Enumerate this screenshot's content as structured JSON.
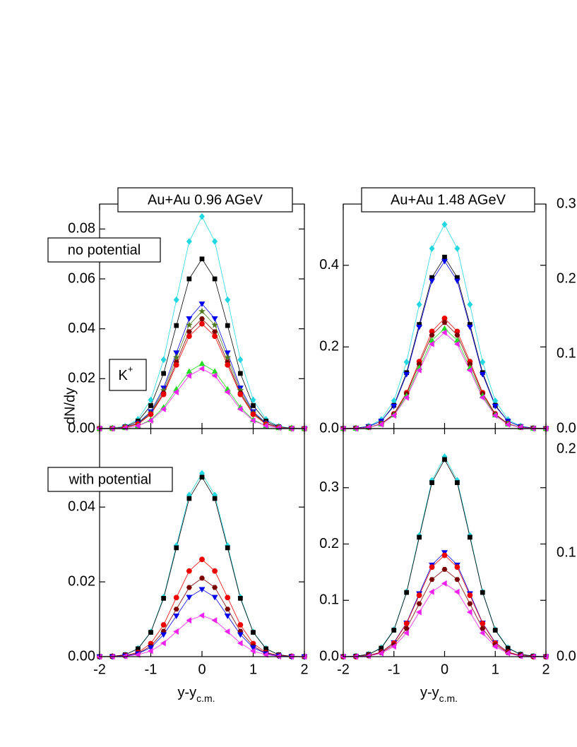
{
  "chart_data": [
    {
      "type": "line",
      "title": "Au+Au 0.96 AGeV",
      "annotations": [
        "no potential",
        {
          "text": "K",
          "sup": "+"
        }
      ],
      "ylabel": "dN/dy",
      "x": [
        -2,
        -1.75,
        -1.5,
        -1.25,
        -1,
        -0.75,
        -0.5,
        -0.25,
        0,
        0.25,
        0.5,
        0.75,
        1,
        1.25,
        1.5,
        1.75,
        2
      ],
      "xlim": [
        -2,
        2
      ],
      "xticks": [
        -2,
        -1,
        0,
        1,
        2
      ],
      "xticklabels": false,
      "ylim": [
        0,
        0.09
      ],
      "yticks": [
        {
          "value": 0,
          "label": "0.00"
        },
        0.02,
        0.04,
        0.06,
        0.08
      ],
      "series": [
        {
          "color": "#22d8e0",
          "marker": "diamond",
          "values": [
            0,
            0.0002,
            0.0009,
            0.0037,
            0.0115,
            0.0276,
            0.0516,
            0.075,
            0.085,
            0.075,
            0.0516,
            0.0276,
            0.0115,
            0.0037,
            0.0009,
            0.0002,
            0
          ]
        },
        {
          "color": "#000000",
          "marker": "square",
          "values": [
            0,
            0.0001,
            0.0007,
            0.003,
            0.0092,
            0.0221,
            0.0413,
            0.06,
            0.068,
            0.06,
            0.0413,
            0.0221,
            0.0092,
            0.003,
            0.0007,
            0.0001,
            0
          ]
        },
        {
          "color": "#0000ee",
          "marker": "triangle-down",
          "values": [
            0,
            0.0001,
            0.0006,
            0.0022,
            0.0068,
            0.0163,
            0.0304,
            0.0441,
            0.05,
            0.0441,
            0.0304,
            0.0163,
            0.0068,
            0.0022,
            0.0006,
            0.0001,
            0
          ]
        },
        {
          "color": "#4f7a1c",
          "marker": "star",
          "values": [
            0,
            0.0001,
            0.0005,
            0.0021,
            0.0063,
            0.0153,
            0.0285,
            0.0415,
            0.047,
            0.0415,
            0.0285,
            0.0153,
            0.0063,
            0.0021,
            0.0005,
            0.0001,
            0
          ]
        },
        {
          "color": "#7a0000",
          "marker": "hexagon",
          "values": [
            0,
            0.0001,
            0.0005,
            0.0019,
            0.0059,
            0.0143,
            0.0267,
            0.0388,
            0.044,
            0.0388,
            0.0267,
            0.0143,
            0.0059,
            0.0019,
            0.0005,
            0.0001,
            0
          ]
        },
        {
          "color": "#ee0000",
          "marker": "circle",
          "values": [
            0,
            0.0001,
            0.0005,
            0.0018,
            0.0057,
            0.0137,
            0.0255,
            0.037,
            0.042,
            0.037,
            0.0255,
            0.0137,
            0.0057,
            0.0018,
            0.0005,
            0.0001,
            0
          ]
        },
        {
          "color": "#22dd22",
          "marker": "triangle-up",
          "values": [
            0,
            0.0001,
            0.0003,
            0.0011,
            0.0035,
            0.0085,
            0.0158,
            0.0229,
            0.026,
            0.0229,
            0.0158,
            0.0085,
            0.0035,
            0.0011,
            0.0003,
            0.0001,
            0
          ]
        },
        {
          "color": "#ee22ee",
          "marker": "triangle-left",
          "values": [
            0,
            0,
            0.0003,
            0.0011,
            0.0032,
            0.0078,
            0.0146,
            0.0212,
            0.024,
            0.0212,
            0.0146,
            0.0078,
            0.0032,
            0.0011,
            0.0003,
            0,
            0
          ]
        }
      ]
    },
    {
      "type": "line",
      "title": "Au+Au 1.48 AGeV",
      "x": [
        -2,
        -1.75,
        -1.5,
        -1.25,
        -1,
        -0.75,
        -0.5,
        -0.25,
        0,
        0.25,
        0.5,
        0.75,
        1,
        1.25,
        1.5,
        1.75,
        2
      ],
      "xlim": [
        -2,
        2
      ],
      "xticks": [
        -2,
        -1,
        0,
        1,
        2
      ],
      "xticklabels": false,
      "ylim": [
        0,
        0.55
      ],
      "yticks": [
        {
          "value": 0,
          "label": "0.0"
        },
        0.2,
        0.4
      ],
      "series": [
        {
          "color": "#22d8e0",
          "marker": "diamond",
          "values": [
            0,
            0.001,
            0.006,
            0.022,
            0.068,
            0.163,
            0.304,
            0.441,
            0.5,
            0.441,
            0.304,
            0.163,
            0.068,
            0.022,
            0.006,
            0.001,
            0
          ]
        },
        {
          "color": "#000000",
          "marker": "square",
          "values": [
            0,
            0.001,
            0.005,
            0.018,
            0.057,
            0.137,
            0.255,
            0.37,
            0.42,
            0.37,
            0.255,
            0.137,
            0.057,
            0.018,
            0.005,
            0.001,
            0
          ]
        },
        {
          "color": "#0000ee",
          "marker": "triangle-down",
          "values": [
            0,
            0.001,
            0.005,
            0.018,
            0.055,
            0.133,
            0.249,
            0.362,
            0.41,
            0.362,
            0.249,
            0.133,
            0.055,
            0.018,
            0.005,
            0.001,
            0
          ]
        },
        {
          "color": "#ee0000",
          "marker": "circle",
          "values": [
            0,
            0.001,
            0.003,
            0.012,
            0.036,
            0.088,
            0.164,
            0.238,
            0.27,
            0.238,
            0.164,
            0.088,
            0.036,
            0.012,
            0.003,
            0.001,
            0
          ]
        },
        {
          "color": "#7a0000",
          "marker": "hexagon",
          "values": [
            0,
            0.001,
            0.003,
            0.011,
            0.035,
            0.085,
            0.158,
            0.229,
            0.26,
            0.229,
            0.158,
            0.085,
            0.035,
            0.011,
            0.003,
            0.001,
            0
          ]
        },
        {
          "color": "#22dd22",
          "marker": "triangle-up",
          "values": [
            0,
            0,
            0.003,
            0.011,
            0.033,
            0.08,
            0.149,
            0.216,
            0.245,
            0.216,
            0.149,
            0.08,
            0.033,
            0.011,
            0.003,
            0,
            0
          ]
        },
        {
          "color": "#ee22ee",
          "marker": "triangle-left",
          "values": [
            0,
            0,
            0.003,
            0.01,
            0.032,
            0.076,
            0.143,
            0.207,
            0.235,
            0.207,
            0.143,
            0.076,
            0.032,
            0.01,
            0.003,
            0,
            0
          ]
        }
      ]
    },
    {
      "type": "line",
      "annotations": [
        "with potential"
      ],
      "xlabel": {
        "text": "y-y",
        "sub": "c.m."
      },
      "x": [
        -2,
        -1.75,
        -1.5,
        -1.25,
        -1,
        -0.75,
        -0.5,
        -0.25,
        0,
        0.25,
        0.5,
        0.75,
        1,
        1.25,
        1.5,
        1.75,
        2
      ],
      "xlim": [
        -2,
        2
      ],
      "xticks": [
        -2,
        -1,
        0,
        1,
        2
      ],
      "xticklabels": true,
      "ylim": [
        0,
        0.061
      ],
      "yticks": [
        {
          "value": 0,
          "label": "0.00"
        },
        0.02,
        0.04
      ],
      "series": [
        {
          "color": "#22d8e0",
          "marker": "diamond",
          "values": [
            0,
            0.0001,
            0.0005,
            0.0022,
            0.0066,
            0.0159,
            0.0297,
            0.0432,
            0.049,
            0.0432,
            0.0297,
            0.0159,
            0.0066,
            0.0022,
            0.0005,
            0.0001,
            0
          ]
        },
        {
          "color": "#000000",
          "marker": "square",
          "values": [
            0,
            0.0001,
            0.0005,
            0.0021,
            0.0065,
            0.0156,
            0.0291,
            0.0423,
            0.048,
            0.0423,
            0.0291,
            0.0156,
            0.0065,
            0.0021,
            0.0005,
            0.0001,
            0
          ]
        },
        {
          "color": "#ee0000",
          "marker": "circle",
          "values": [
            0,
            0.0001,
            0.0003,
            0.0011,
            0.0035,
            0.0085,
            0.0158,
            0.0229,
            0.026,
            0.0229,
            0.0158,
            0.0085,
            0.0035,
            0.0011,
            0.0003,
            0.0001,
            0
          ]
        },
        {
          "color": "#7a0000",
          "marker": "hexagon",
          "values": [
            0,
            0,
            0.0002,
            0.0009,
            0.0028,
            0.0068,
            0.0127,
            0.0185,
            0.021,
            0.0185,
            0.0127,
            0.0068,
            0.0028,
            0.0009,
            0.0002,
            0,
            0
          ]
        },
        {
          "color": "#0000ee",
          "marker": "triangle-down",
          "values": [
            0,
            0,
            0.0002,
            0.0008,
            0.0024,
            0.0059,
            0.0109,
            0.0159,
            0.018,
            0.0159,
            0.0109,
            0.0059,
            0.0024,
            0.0008,
            0.0002,
            0,
            0
          ]
        },
        {
          "color": "#ee22ee",
          "marker": "triangle-left",
          "values": [
            0,
            0,
            0.0001,
            0.0005,
            0.0015,
            0.0036,
            0.0067,
            0.0097,
            0.011,
            0.0097,
            0.0067,
            0.0036,
            0.0015,
            0.0005,
            0.0001,
            0,
            0
          ]
        }
      ]
    },
    {
      "type": "line",
      "xlabel": {
        "text": "y-y",
        "sub": "c.m."
      },
      "x": [
        -2,
        -1.75,
        -1.5,
        -1.25,
        -1,
        -0.75,
        -0.5,
        -0.25,
        0,
        0.25,
        0.5,
        0.75,
        1,
        1.25,
        1.5,
        1.75,
        2
      ],
      "xlim": [
        -2,
        2
      ],
      "xticks": [
        -2,
        -1,
        0,
        1,
        2
      ],
      "xticklabels": true,
      "ylim": [
        0,
        0.405
      ],
      "yticks": [
        {
          "value": 0,
          "label": "0.0"
        },
        0.1,
        0.2,
        0.3
      ],
      "series": [
        {
          "color": "#22d8e0",
          "marker": "diamond",
          "values": [
            0,
            0.001,
            0.004,
            0.016,
            0.048,
            0.115,
            0.215,
            0.313,
            0.355,
            0.313,
            0.215,
            0.115,
            0.048,
            0.016,
            0.004,
            0.001,
            0
          ]
        },
        {
          "color": "#000000",
          "marker": "square",
          "values": [
            0,
            0.001,
            0.004,
            0.015,
            0.047,
            0.114,
            0.212,
            0.309,
            0.35,
            0.309,
            0.212,
            0.114,
            0.047,
            0.015,
            0.004,
            0.001,
            0
          ]
        },
        {
          "color": "#0000ee",
          "marker": "triangle-down",
          "values": [
            0,
            0,
            0.002,
            0.008,
            0.025,
            0.06,
            0.112,
            0.163,
            0.185,
            0.163,
            0.112,
            0.06,
            0.025,
            0.008,
            0.002,
            0,
            0
          ]
        },
        {
          "color": "#ee0000",
          "marker": "circle",
          "values": [
            0,
            0,
            0.002,
            0.008,
            0.024,
            0.059,
            0.109,
            0.159,
            0.18,
            0.159,
            0.109,
            0.059,
            0.024,
            0.008,
            0.002,
            0,
            0
          ]
        },
        {
          "color": "#7a0000",
          "marker": "hexagon",
          "values": [
            0,
            0,
            0.002,
            0.007,
            0.021,
            0.05,
            0.094,
            0.137,
            0.155,
            0.137,
            0.094,
            0.05,
            0.021,
            0.007,
            0.002,
            0,
            0
          ]
        },
        {
          "color": "#ee22ee",
          "marker": "triangle-left",
          "values": [
            0,
            0,
            0.001,
            0.006,
            0.018,
            0.042,
            0.079,
            0.115,
            0.13,
            0.115,
            0.079,
            0.042,
            0.018,
            0.006,
            0.001,
            0,
            0
          ]
        }
      ]
    },
    {
      "type": "axis-stub",
      "ylim": [
        0,
        0.3
      ],
      "yticks": [
        {
          "value": 0,
          "label": "0.0"
        },
        0.1,
        0.2,
        0.3
      ]
    },
    {
      "type": "axis-stub",
      "ylim": [
        0,
        0.22
      ],
      "yticks": [
        {
          "value": 0,
          "label": "0.0"
        },
        0.1,
        0.2
      ]
    }
  ]
}
